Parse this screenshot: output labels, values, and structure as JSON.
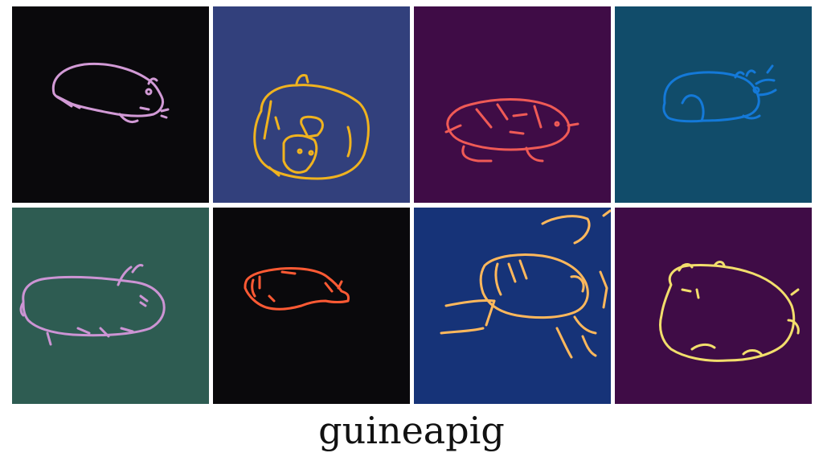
{
  "caption": "guineapig",
  "tiles": [
    {
      "bg": "#0a090c",
      "stroke": "#d29ad6"
    },
    {
      "bg": "#32407c",
      "stroke": "#f0b31f"
    },
    {
      "bg": "#3f0c46",
      "stroke": "#ef5a56"
    },
    {
      "bg": "#114c6a",
      "stroke": "#1479d8"
    },
    {
      "bg": "#2e5c52",
      "stroke": "#cc94d4"
    },
    {
      "bg": "#0a090c",
      "stroke": "#ff5a34"
    },
    {
      "bg": "#163378",
      "stroke": "#ffb85c"
    },
    {
      "bg": "#3f0c46",
      "stroke": "#f2de6c"
    }
  ]
}
